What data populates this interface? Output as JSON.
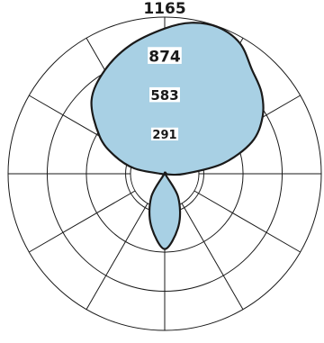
{
  "chart_data": {
    "type": "polar_area",
    "radial_axis": {
      "min": 0,
      "max": 1165,
      "ticks": [
        291,
        583,
        874,
        1165
      ],
      "tick_labels": [
        "291",
        "583",
        "874",
        "1165"
      ]
    },
    "angular_axis": {
      "spoke_count": 12,
      "spoke_step_deg": 30,
      "zero_direction": "up",
      "direction": "clockwise",
      "tick_labels": []
    },
    "series": [
      {
        "fill": "#a8d0e4",
        "stroke": "#1a1a1a",
        "points": [
          {
            "angle": 0,
            "r": 1080
          },
          {
            "angle": 10,
            "r": 1140
          },
          {
            "angle": 20,
            "r": 1160
          },
          {
            "angle": 30,
            "r": 1120
          },
          {
            "angle": 40,
            "r": 1010
          },
          {
            "angle": 50,
            "r": 940
          },
          {
            "angle": 60,
            "r": 840
          },
          {
            "angle": 70,
            "r": 690
          },
          {
            "angle": 80,
            "r": 440
          },
          {
            "angle": 90,
            "r": 150
          },
          {
            "angle": 100,
            "r": 30
          },
          {
            "angle": 120,
            "r": 5
          },
          {
            "angle": 150,
            "r": 200
          },
          {
            "angle": 165,
            "r": 400
          },
          {
            "angle": 180,
            "r": 560
          },
          {
            "angle": 195,
            "r": 395
          },
          {
            "angle": 210,
            "r": 200
          },
          {
            "angle": 240,
            "r": 5
          },
          {
            "angle": 265,
            "r": 20
          },
          {
            "angle": 280,
            "r": 230
          },
          {
            "angle": 290,
            "r": 400
          },
          {
            "angle": 300,
            "r": 560
          },
          {
            "angle": 315,
            "r": 770
          },
          {
            "angle": 330,
            "r": 890
          },
          {
            "angle": 345,
            "r": 990
          }
        ]
      }
    ]
  }
}
